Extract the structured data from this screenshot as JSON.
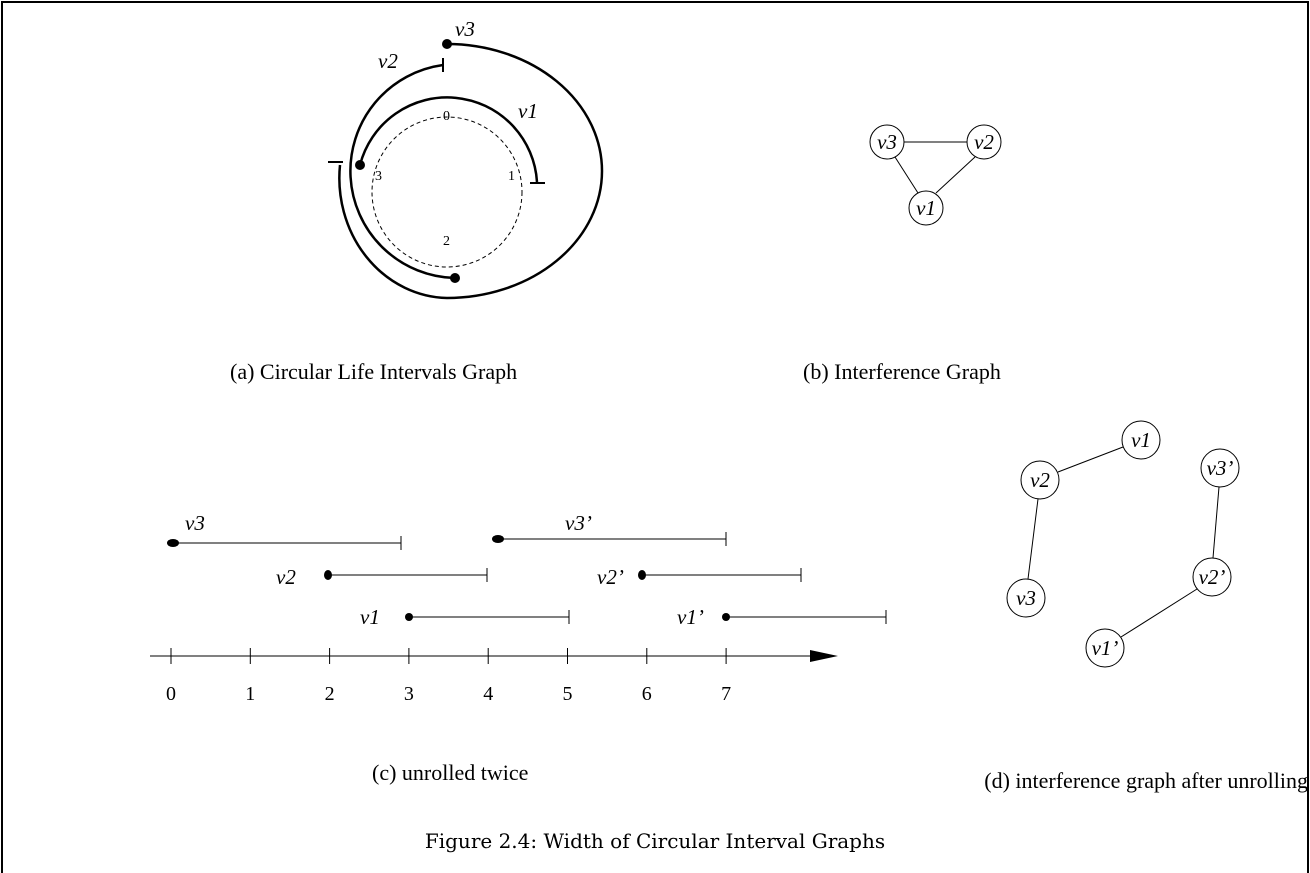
{
  "panel_a": {
    "interval_labels": [
      "v3",
      "v2",
      "v1"
    ],
    "circle_marks": [
      "0",
      "1",
      "2",
      "3"
    ],
    "caption": "(a) Circular Life Intervals Graph"
  },
  "panel_b": {
    "nodes": [
      "v3",
      "v2",
      "v1"
    ],
    "caption": "(b) Interference Graph"
  },
  "panel_c": {
    "interval_labels": [
      "v3",
      "v3’",
      "v2",
      "v2’",
      "v1",
      "v1’"
    ],
    "axis_ticks": [
      "0",
      "1",
      "2",
      "3",
      "4",
      "5",
      "6",
      "7"
    ],
    "caption": "(c) unrolled twice"
  },
  "panel_d": {
    "nodes": [
      "v1",
      "v2",
      "v3’",
      "v3",
      "v2’",
      "v1’"
    ],
    "caption": "(d) interference graph after unrolling"
  },
  "figure_caption": "Figure 2.4: Width of Circular Interval Graphs"
}
